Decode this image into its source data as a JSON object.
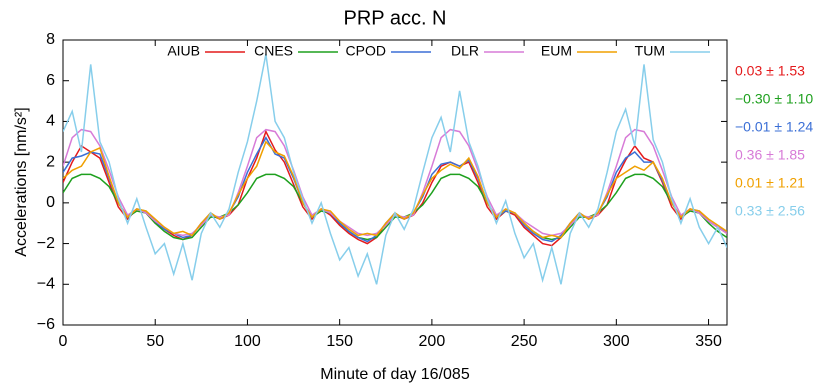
{
  "chart_data": {
    "type": "line",
    "title": "PRP acc. N",
    "x_label": "Minute of day 16/085",
    "y_label": "Accelerations [nm/s²]",
    "xlim": [
      0,
      360
    ],
    "ylim": [
      -6,
      8
    ],
    "xticks": [
      0,
      50,
      100,
      150,
      200,
      250,
      300,
      350
    ],
    "yticks": [
      {
        "value": -6,
        "label": "−6"
      },
      {
        "value": -4,
        "label": "−4"
      },
      {
        "value": -2,
        "label": "−2"
      },
      0,
      2,
      4,
      6,
      8
    ],
    "x": [
      0,
      5,
      10,
      15,
      20,
      25,
      30,
      35,
      40,
      45,
      50,
      55,
      60,
      65,
      70,
      75,
      80,
      85,
      90,
      95,
      100,
      105,
      110,
      115,
      120,
      125,
      130,
      135,
      140,
      145,
      150,
      155,
      160,
      165,
      170,
      175,
      180,
      185,
      190,
      195,
      200,
      205,
      210,
      215,
      220,
      225,
      230,
      235,
      240,
      245,
      250,
      255,
      260,
      265,
      270,
      275,
      280,
      285,
      290,
      295,
      300,
      305,
      310,
      315,
      320,
      325,
      330,
      335,
      340,
      345,
      350,
      355,
      360
    ],
    "series": [
      {
        "name": "AIUB",
        "color": "#e41a1c",
        "stats": "0.03 ± 1.53",
        "values": [
          1.0,
          2.0,
          2.8,
          2.5,
          2.2,
          1.0,
          -0.2,
          -0.8,
          -0.3,
          -0.5,
          -1.0,
          -1.3,
          -1.6,
          -1.8,
          -1.6,
          -1.0,
          -0.6,
          -0.8,
          -0.6,
          -0.1,
          1.2,
          2.2,
          3.5,
          2.6,
          2.0,
          0.9,
          -0.2,
          -0.8,
          -0.3,
          -0.6,
          -1.1,
          -1.5,
          -1.8,
          -2.0,
          -1.7,
          -1.0,
          -0.6,
          -0.8,
          -0.6,
          0.0,
          1.0,
          1.8,
          2.0,
          1.8,
          2.0,
          1.0,
          -0.2,
          -0.8,
          -0.4,
          -0.6,
          -1.2,
          -1.6,
          -2.0,
          -2.1,
          -1.7,
          -1.0,
          -0.5,
          -0.8,
          -0.6,
          -0.1,
          1.2,
          2.1,
          2.8,
          2.2,
          2.0,
          1.0,
          -0.2,
          -0.8,
          -0.3,
          -0.5,
          -0.9,
          -1.2,
          -1.5
        ]
      },
      {
        "name": "CNES",
        "color": "#1ea01e",
        "stats": "−0.30 ± 1.10",
        "values": [
          0.5,
          1.2,
          1.4,
          1.4,
          1.2,
          0.8,
          0.0,
          -0.7,
          -0.4,
          -0.5,
          -1.0,
          -1.4,
          -1.7,
          -1.8,
          -1.7,
          -1.2,
          -0.7,
          -0.7,
          -0.5,
          -0.1,
          0.5,
          1.2,
          1.4,
          1.4,
          1.2,
          0.8,
          0.0,
          -0.7,
          -0.4,
          -0.5,
          -1.0,
          -1.4,
          -1.7,
          -1.8,
          -1.7,
          -1.2,
          -0.7,
          -0.7,
          -0.5,
          -0.1,
          0.5,
          1.2,
          1.4,
          1.4,
          1.2,
          0.8,
          0.0,
          -0.7,
          -0.4,
          -0.5,
          -1.0,
          -1.4,
          -1.7,
          -1.8,
          -1.7,
          -1.2,
          -0.7,
          -0.7,
          -0.5,
          -0.1,
          0.5,
          1.2,
          1.4,
          1.4,
          1.2,
          0.8,
          0.0,
          -0.7,
          -0.4,
          -0.5,
          -1.0,
          -1.4,
          -1.7
        ]
      },
      {
        "name": "CPOD",
        "color": "#3b6fd6",
        "stats": "−0.01 ± 1.24",
        "values": [
          1.5,
          2.2,
          2.3,
          2.5,
          2.4,
          1.2,
          0.0,
          -0.7,
          -0.3,
          -0.4,
          -0.9,
          -1.3,
          -1.5,
          -1.7,
          -1.6,
          -1.0,
          -0.5,
          -0.8,
          -0.5,
          0.3,
          1.5,
          2.4,
          3.2,
          2.4,
          2.2,
          1.2,
          0.0,
          -0.7,
          -0.3,
          -0.5,
          -1.0,
          -1.4,
          -1.7,
          -1.9,
          -1.6,
          -1.0,
          -0.5,
          -0.8,
          -0.5,
          0.3,
          1.4,
          1.9,
          2.0,
          1.8,
          2.1,
          1.2,
          0.0,
          -0.7,
          -0.4,
          -0.5,
          -1.1,
          -1.5,
          -1.8,
          -1.9,
          -1.6,
          -1.0,
          -0.5,
          -0.8,
          -0.5,
          0.3,
          1.5,
          2.2,
          2.5,
          2.0,
          2.0,
          1.1,
          0.0,
          -0.7,
          -0.3,
          -0.4,
          -0.9,
          -1.2,
          -1.4
        ]
      },
      {
        "name": "DLR",
        "color": "#d77bd7",
        "stats": "0.36 ± 1.85",
        "values": [
          1.8,
          3.2,
          3.6,
          3.5,
          2.8,
          1.6,
          0.3,
          -0.6,
          -0.3,
          -0.5,
          -0.9,
          -1.2,
          -1.5,
          -1.6,
          -1.5,
          -1.1,
          -0.6,
          -0.7,
          -0.6,
          0.5,
          1.8,
          3.2,
          3.6,
          3.5,
          2.8,
          1.6,
          0.3,
          -0.6,
          -0.3,
          -0.5,
          -0.9,
          -1.2,
          -1.5,
          -1.6,
          -1.5,
          -1.1,
          -0.6,
          -0.7,
          -0.6,
          0.5,
          1.8,
          3.2,
          3.6,
          3.5,
          2.8,
          1.6,
          0.3,
          -0.6,
          -0.3,
          -0.5,
          -0.9,
          -1.2,
          -1.5,
          -1.6,
          -1.5,
          -1.1,
          -0.6,
          -0.7,
          -0.6,
          0.5,
          1.8,
          3.2,
          3.6,
          3.5,
          2.8,
          1.6,
          0.3,
          -0.6,
          -0.3,
          -0.5,
          -0.9,
          -1.2,
          -1.5
        ]
      },
      {
        "name": "EUM",
        "color": "#f0a000",
        "stats": "0.01 ± 1.21",
        "values": [
          1.2,
          1.6,
          1.8,
          2.5,
          2.7,
          1.3,
          0.0,
          -0.7,
          -0.3,
          -0.4,
          -0.8,
          -1.2,
          -1.5,
          -1.4,
          -1.6,
          -1.0,
          -0.5,
          -0.8,
          -0.5,
          0.4,
          1.2,
          1.8,
          3.0,
          2.5,
          2.3,
          1.3,
          0.0,
          -0.7,
          -0.3,
          -0.4,
          -0.9,
          -1.3,
          -1.6,
          -1.5,
          -1.6,
          -1.0,
          -0.5,
          -0.8,
          -0.5,
          0.4,
          1.2,
          1.6,
          1.9,
          1.7,
          2.2,
          1.3,
          0.0,
          -0.7,
          -0.3,
          -0.5,
          -1.0,
          -1.4,
          -1.7,
          -1.6,
          -1.7,
          -1.0,
          -0.5,
          -0.8,
          -0.5,
          0.4,
          1.2,
          1.5,
          1.8,
          1.6,
          2.0,
          1.2,
          0.0,
          -0.7,
          -0.3,
          -0.4,
          -0.8,
          -1.1,
          -1.4
        ]
      },
      {
        "name": "TUM",
        "color": "#87ceeb",
        "stats": "0.33 ± 2.56",
        "values": [
          3.5,
          4.5,
          2.5,
          6.8,
          3.0,
          2.0,
          0.2,
          -1.0,
          0.2,
          -1.2,
          -2.5,
          -2.0,
          -3.5,
          -2.0,
          -3.8,
          -1.5,
          -0.5,
          -1.2,
          -0.3,
          1.5,
          3.0,
          5.0,
          7.3,
          4.0,
          3.2,
          1.5,
          0.2,
          -1.0,
          0.0,
          -1.5,
          -2.8,
          -2.2,
          -3.6,
          -2.5,
          -4.0,
          -1.6,
          -0.5,
          -1.3,
          -0.3,
          1.5,
          3.2,
          4.2,
          2.5,
          5.5,
          3.0,
          1.8,
          0.2,
          -1.0,
          0.1,
          -1.5,
          -2.7,
          -2.0,
          -3.8,
          -2.2,
          -4.0,
          -1.5,
          -0.5,
          -1.2,
          -0.3,
          1.5,
          3.5,
          4.6,
          2.8,
          6.8,
          3.1,
          2.0,
          0.2,
          -1.0,
          0.2,
          -1.2,
          -2.0,
          -1.2,
          -2.2
        ]
      }
    ]
  }
}
